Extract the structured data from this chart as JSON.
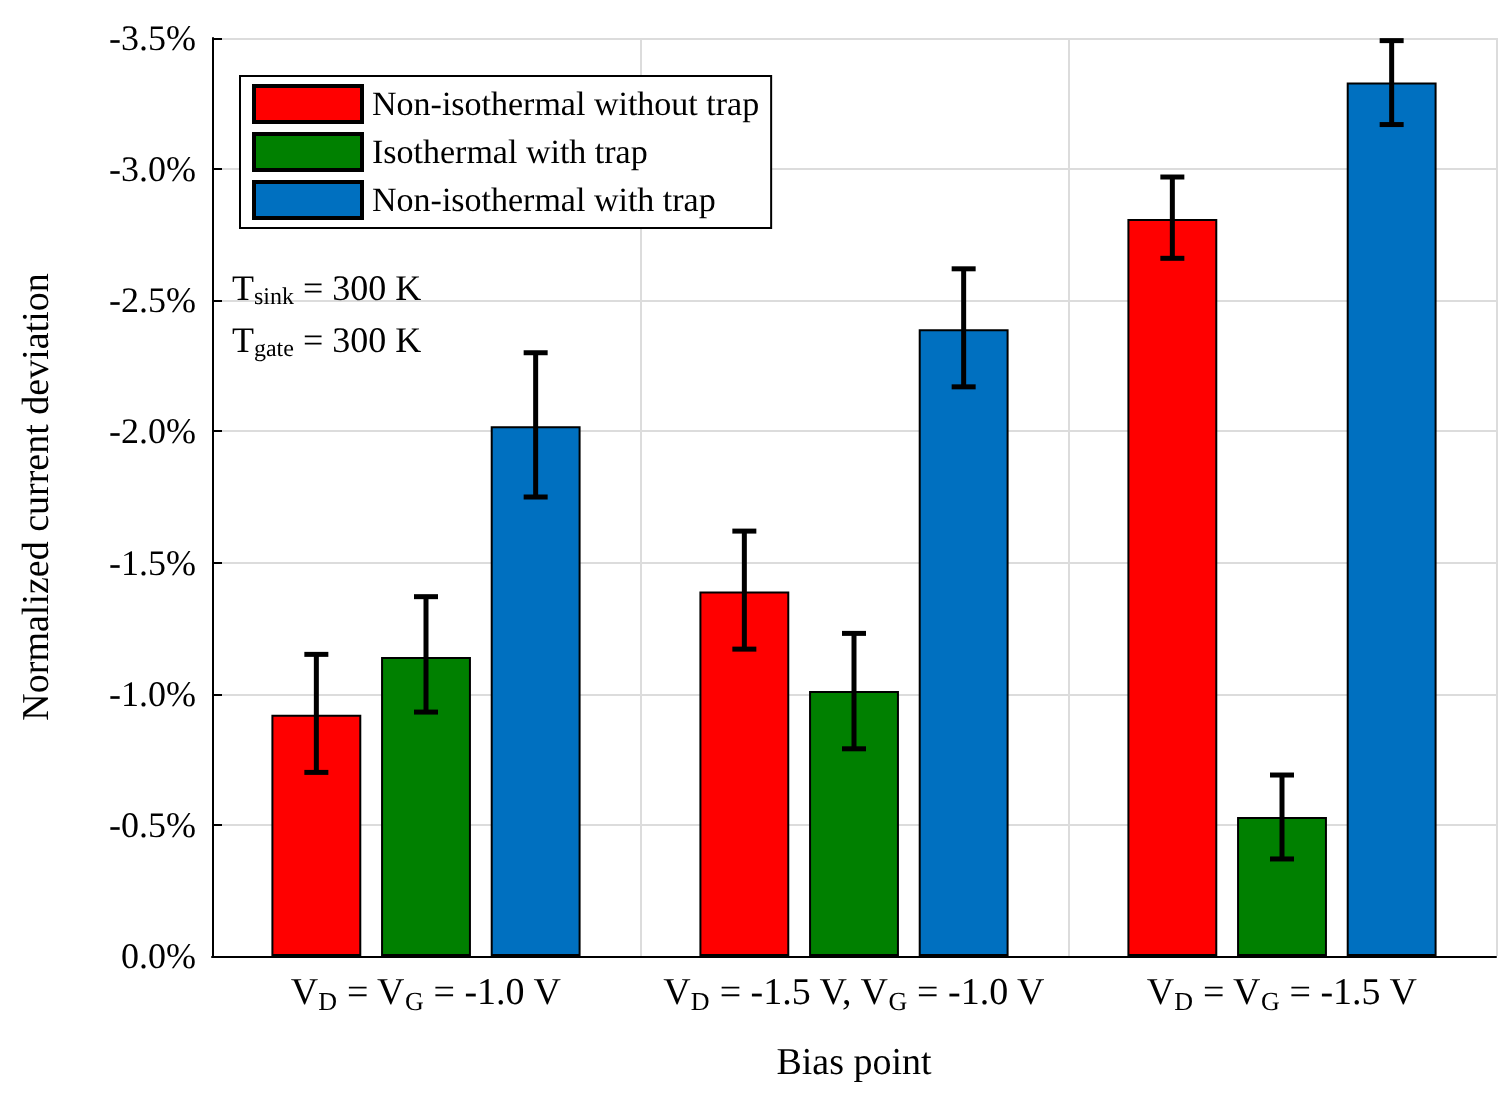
{
  "chart_data": {
    "type": "bar",
    "xlabel": "Bias point",
    "ylabel": "Normalized current deviation",
    "categories": [
      "V$_{D}$ = V$_{G}$ = -1.0 V",
      "V$_{D}$ = -1.5 V, V$_{G}$ = -1.0 V",
      "V$_{D}$ = V$_{G}$ = -1.5 V"
    ],
    "series": [
      {
        "name": "Non-isothermal without trap",
        "color": "#ff0000",
        "values": [
          -0.92,
          -1.39,
          -2.81
        ],
        "errors": [
          [
            -1.15,
            -0.7
          ],
          [
            -1.62,
            -1.17
          ],
          [
            -2.97,
            -2.66
          ]
        ]
      },
      {
        "name": "Isothermal with trap",
        "color": "#008000",
        "values": [
          -1.14,
          -1.01,
          -0.53
        ],
        "errors": [
          [
            -1.37,
            -0.93
          ],
          [
            -1.23,
            -0.79
          ],
          [
            -0.69,
            -0.37
          ]
        ]
      },
      {
        "name": "Non-isothermal with trap",
        "color": "#0070c0",
        "values": [
          -2.02,
          -2.39,
          -3.33
        ],
        "errors": [
          [
            -2.3,
            -1.75
          ],
          [
            -2.62,
            -2.17
          ],
          [
            -3.49,
            -3.17
          ]
        ]
      }
    ],
    "ylim": [
      0,
      -3.5
    ],
    "yticks": [
      {
        "value": 0,
        "label": "0.0%"
      },
      {
        "value": -0.5,
        "label": "-0.5%"
      },
      {
        "value": -1,
        "label": "-1.0%"
      },
      {
        "value": -1.5,
        "label": "-1.5%"
      },
      {
        "value": -2,
        "label": "-2.0%"
      },
      {
        "value": -2.5,
        "label": "-2.5%"
      },
      {
        "value": -3,
        "label": "-3.0%"
      },
      {
        "value": -3.5,
        "label": "-3.5%"
      }
    ],
    "annotations": [
      "T$_{sink}$ = 300 K",
      "T$_{gate}$ = 300 K"
    ],
    "grid": true,
    "legend": "top left"
  }
}
